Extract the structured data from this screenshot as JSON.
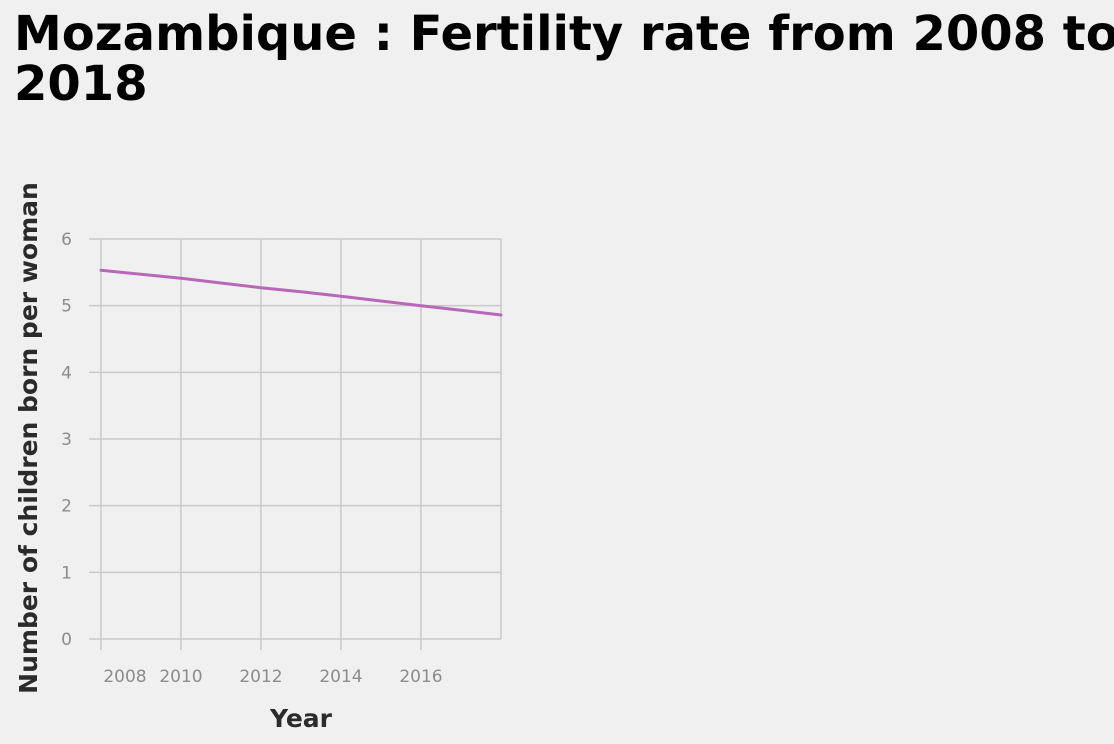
{
  "chart_data": {
    "type": "line",
    "title": "Mozambique : Fertility rate from 2008 to 2018",
    "xlabel": "Year",
    "ylabel": "Number of children born per woman",
    "xlim": [
      2008,
      2018
    ],
    "ylim": [
      0,
      6
    ],
    "x_ticks": [
      2008,
      2010,
      2012,
      2014,
      2016
    ],
    "y_ticks": [
      0,
      1,
      2,
      3,
      4,
      5,
      6
    ],
    "grid": true,
    "legend": "none",
    "series": [
      {
        "color": "#b769b7",
        "x": [
          2008,
          2009,
          2010,
          2011,
          2012,
          2013,
          2014,
          2015,
          2016,
          2017,
          2018
        ],
        "values": [
          5.53,
          5.47,
          5.41,
          5.34,
          5.27,
          5.21,
          5.14,
          5.07,
          5.0,
          4.93,
          4.86
        ]
      }
    ]
  }
}
